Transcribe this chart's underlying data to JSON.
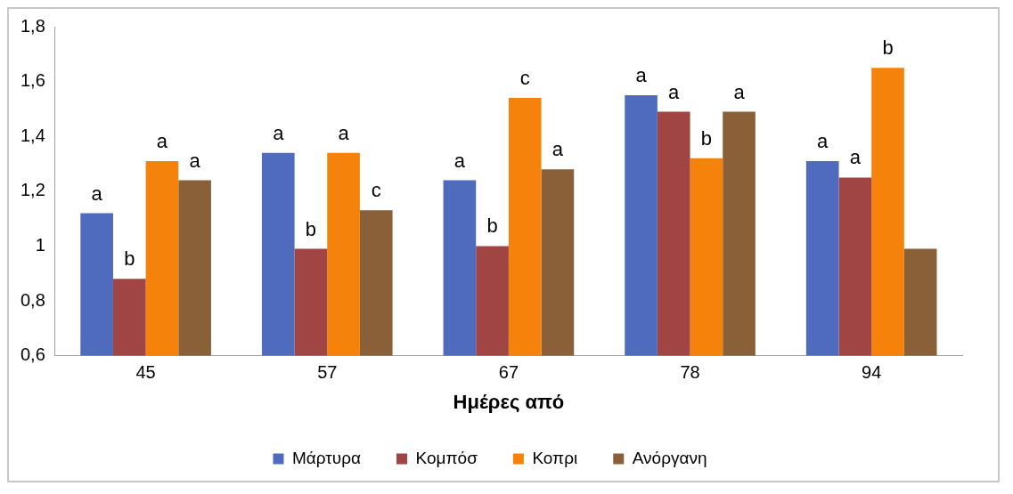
{
  "chart_data": {
    "type": "bar",
    "xlabel": "Ημέρες από",
    "categories": [
      "45",
      "57",
      "67",
      "78",
      "94"
    ],
    "series": [
      {
        "name": "Μάρτυρα",
        "color": "#4f6bbd",
        "values": [
          1.12,
          1.34,
          1.24,
          1.55,
          1.31
        ],
        "value_labels": [
          "a",
          "a",
          "a",
          "a",
          "a"
        ]
      },
      {
        "name": "Κομπόσ",
        "color": "#a04444",
        "values": [
          0.88,
          0.99,
          1.0,
          1.49,
          1.25
        ],
        "value_labels": [
          "b",
          "b",
          "b",
          "a",
          "a"
        ]
      },
      {
        "name": "Κοπρι",
        "color": "#f5820a",
        "values": [
          1.31,
          1.34,
          1.54,
          1.32,
          1.65
        ],
        "value_labels": [
          "a",
          "a",
          "c",
          "b",
          "b"
        ]
      },
      {
        "name": "Ανόργανη",
        "color": "#8a6038",
        "values": [
          1.24,
          1.13,
          1.28,
          1.49,
          0.99
        ],
        "value_labels": [
          "a",
          "c",
          "a",
          "a",
          null
        ]
      }
    ],
    "ylim": [
      0.6,
      1.8
    ],
    "yticks": [
      {
        "value": 0.6,
        "label": "0,6"
      },
      {
        "value": 0.8,
        "label": "0,8"
      },
      1,
      {
        "value": 1.2,
        "label": "1,2"
      },
      {
        "value": 1.4,
        "label": "1,4"
      },
      {
        "value": 1.6,
        "label": "1,6"
      },
      {
        "value": 1.8,
        "label": "1,8"
      }
    ],
    "grid": false,
    "legend": "bottom"
  }
}
